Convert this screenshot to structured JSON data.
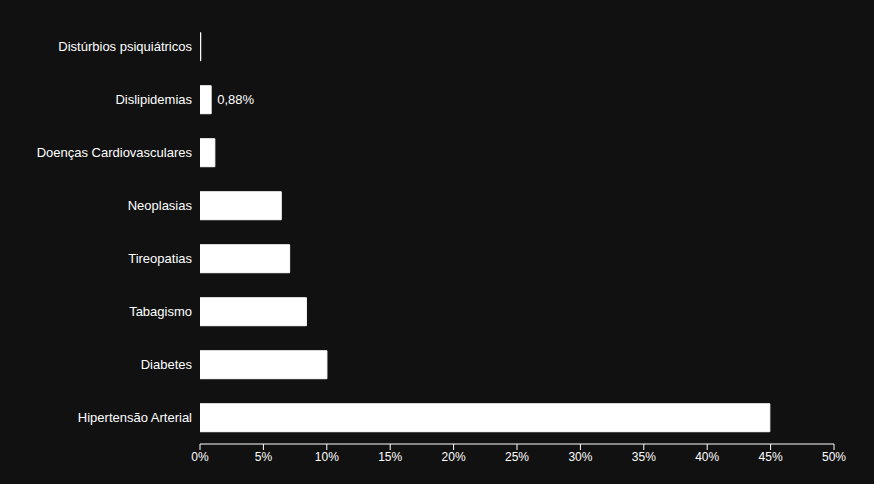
{
  "chart_data": {
    "type": "bar",
    "orientation": "horizontal",
    "categories": [
      "Hipertensão Arterial",
      "Diabetes",
      "Tabagismo",
      "Tireopatias",
      "Neoplasias",
      "Doenças Cardiovasculares",
      "Dislipidemias",
      "Distúrbios psiquiátricos"
    ],
    "values": [
      44.94,
      10.01,
      8.39,
      7.07,
      6.41,
      1.17,
      0.88,
      0.06
    ],
    "color": "#ffffff",
    "xlim": [
      0,
      50
    ],
    "xticks": [
      {
        "value": 0,
        "label": "0%"
      },
      {
        "value": 5,
        "label": "5%"
      },
      {
        "value": 10,
        "label": "10%"
      },
      {
        "value": 15,
        "label": "15%"
      },
      {
        "value": 20,
        "label": "20%"
      },
      {
        "value": 25,
        "label": "25%"
      },
      {
        "value": 30,
        "label": "30%"
      },
      {
        "value": 35,
        "label": "35%"
      },
      {
        "value": 40,
        "label": "40%"
      },
      {
        "value": 45,
        "label": "45%"
      },
      {
        "value": 50,
        "label": "50%"
      }
    ],
    "grid": false,
    "annotations": [
      {
        "text": "0,88%",
        "category": "Dislipidemias"
      }
    ]
  }
}
